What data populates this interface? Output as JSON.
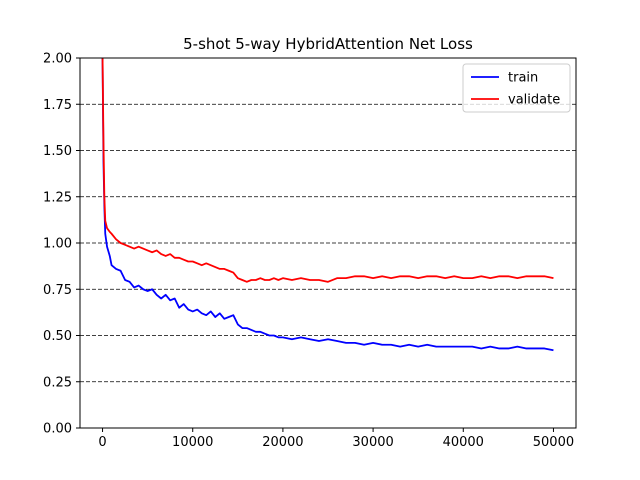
{
  "chart_data": {
    "type": "line",
    "title": "5-shot 5-way HybridAttention Net Loss",
    "xlabel": "",
    "ylabel": "",
    "xlim": [
      -2500,
      52500
    ],
    "ylim": [
      0,
      2.0
    ],
    "x_ticks": [
      0,
      10000,
      20000,
      30000,
      40000,
      50000
    ],
    "x_tick_labels": [
      "0",
      "10000",
      "20000",
      "30000",
      "40000",
      "50000"
    ],
    "y_ticks": [
      0,
      0.25,
      0.5,
      0.75,
      1.0,
      1.25,
      1.5,
      1.75,
      2.0
    ],
    "y_tick_labels": [
      "0.00",
      "0.25",
      "0.50",
      "0.75",
      "1.00",
      "1.25",
      "1.50",
      "1.75",
      "2.00"
    ],
    "grid": "horizontal dashed",
    "legend_position": "top-right",
    "series": [
      {
        "name": "train",
        "color": "#0000ff",
        "x": [
          0,
          100,
          200,
          300,
          500,
          800,
          1000,
          1500,
          2000,
          2500,
          3000,
          3500,
          4000,
          4500,
          5000,
          5500,
          6000,
          6500,
          7000,
          7500,
          8000,
          8500,
          9000,
          9500,
          10000,
          10500,
          11000,
          11500,
          12000,
          12500,
          13000,
          13500,
          14000,
          14500,
          15000,
          15500,
          16000,
          16500,
          17000,
          17500,
          18000,
          18500,
          19000,
          19500,
          20000,
          21000,
          22000,
          23000,
          24000,
          25000,
          26000,
          27000,
          28000,
          29000,
          30000,
          31000,
          32000,
          33000,
          34000,
          35000,
          36000,
          37000,
          38000,
          39000,
          40000,
          41000,
          42000,
          43000,
          44000,
          45000,
          46000,
          47000,
          48000,
          49000,
          50000
        ],
        "values": [
          2.0,
          1.45,
          1.2,
          1.05,
          0.98,
          0.93,
          0.88,
          0.86,
          0.85,
          0.8,
          0.79,
          0.76,
          0.77,
          0.75,
          0.74,
          0.75,
          0.72,
          0.7,
          0.72,
          0.69,
          0.7,
          0.65,
          0.67,
          0.64,
          0.63,
          0.64,
          0.62,
          0.61,
          0.63,
          0.6,
          0.62,
          0.59,
          0.6,
          0.61,
          0.56,
          0.54,
          0.54,
          0.53,
          0.52,
          0.52,
          0.51,
          0.5,
          0.5,
          0.49,
          0.49,
          0.48,
          0.49,
          0.48,
          0.47,
          0.48,
          0.47,
          0.46,
          0.46,
          0.45,
          0.46,
          0.45,
          0.45,
          0.44,
          0.45,
          0.44,
          0.45,
          0.44,
          0.44,
          0.44,
          0.44,
          0.44,
          0.43,
          0.44,
          0.43,
          0.43,
          0.44,
          0.43,
          0.43,
          0.43,
          0.42
        ]
      },
      {
        "name": "validate",
        "color": "#ff0000",
        "x": [
          0,
          100,
          200,
          300,
          500,
          800,
          1000,
          1500,
          2000,
          2500,
          3000,
          3500,
          4000,
          4500,
          5000,
          5500,
          6000,
          6500,
          7000,
          7500,
          8000,
          8500,
          9000,
          9500,
          10000,
          10500,
          11000,
          11500,
          12000,
          12500,
          13000,
          13500,
          14000,
          14500,
          15000,
          15500,
          16000,
          16500,
          17000,
          17500,
          18000,
          18500,
          19000,
          19500,
          20000,
          21000,
          22000,
          23000,
          24000,
          25000,
          26000,
          27000,
          28000,
          29000,
          30000,
          31000,
          32000,
          33000,
          34000,
          35000,
          36000,
          37000,
          38000,
          39000,
          40000,
          41000,
          42000,
          43000,
          44000,
          45000,
          46000,
          47000,
          48000,
          49000,
          50000
        ],
        "values": [
          2.0,
          1.55,
          1.25,
          1.12,
          1.08,
          1.06,
          1.05,
          1.02,
          1.0,
          0.99,
          0.98,
          0.97,
          0.98,
          0.97,
          0.96,
          0.95,
          0.96,
          0.94,
          0.93,
          0.94,
          0.92,
          0.92,
          0.91,
          0.9,
          0.9,
          0.89,
          0.88,
          0.89,
          0.88,
          0.87,
          0.86,
          0.86,
          0.85,
          0.84,
          0.81,
          0.8,
          0.79,
          0.8,
          0.8,
          0.81,
          0.8,
          0.8,
          0.81,
          0.8,
          0.81,
          0.8,
          0.81,
          0.8,
          0.8,
          0.79,
          0.81,
          0.81,
          0.82,
          0.82,
          0.81,
          0.82,
          0.81,
          0.82,
          0.82,
          0.81,
          0.82,
          0.82,
          0.81,
          0.82,
          0.81,
          0.81,
          0.82,
          0.81,
          0.82,
          0.82,
          0.81,
          0.82,
          0.82,
          0.82,
          0.81
        ]
      }
    ]
  }
}
